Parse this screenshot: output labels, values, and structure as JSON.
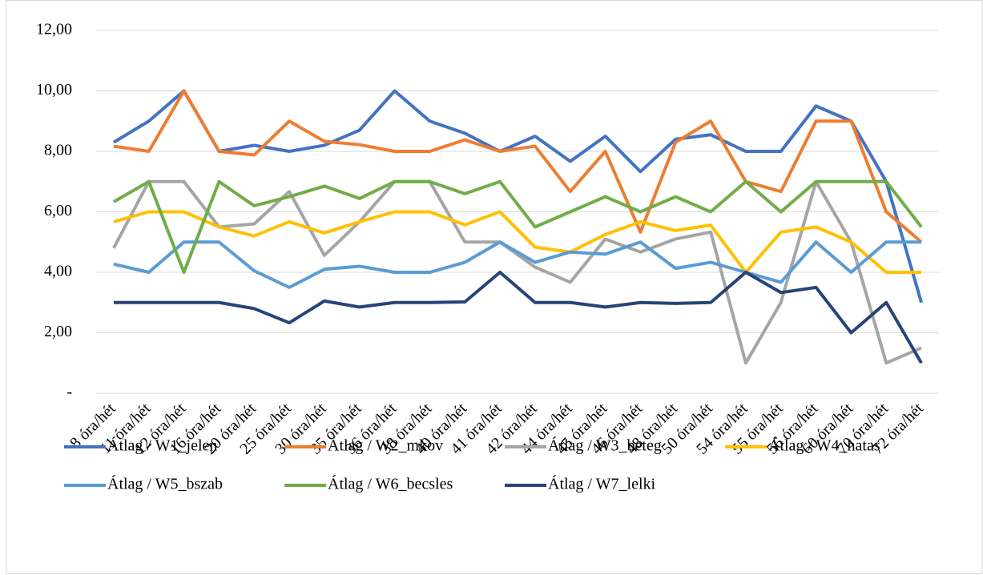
{
  "chart_data": {
    "type": "line",
    "categories": [
      "8 óra/hét",
      "11 óra/hét",
      "12 óra/hét",
      "16 óra/hét",
      "20 óra/hét",
      "25 óra/hét",
      "30 óra/hét",
      "35 óra/hét",
      "36 óra/hét",
      "38 óra/hét",
      "40 óra/hét",
      "41 óra/hét",
      "42 óra/hét",
      "44 óra/hét",
      "45 óra/hét",
      "46 óra/hét",
      "48 óra/hét",
      "50 óra/hét",
      "54 óra/hét",
      "55 óra/hét",
      "56 óra/hét",
      "60 óra/hét",
      "70 óra/hét",
      "72 óra/hét"
    ],
    "series": [
      {
        "name": "Átlag / W1_jelen",
        "color": "#4472c4",
        "values": [
          8.3,
          9.0,
          10.0,
          8.0,
          8.2,
          8.0,
          8.2,
          8.7,
          10.0,
          9.0,
          8.6,
          8.0,
          8.5,
          7.67,
          8.5,
          7.33,
          8.4,
          8.55,
          8.0,
          8.0,
          9.5,
          9.0,
          7.0,
          3.0
        ]
      },
      {
        "name": "Átlag / W2_mkov",
        "color": "#ed7d31",
        "values": [
          8.17,
          8.0,
          10.0,
          8.0,
          7.88,
          9.0,
          8.33,
          8.22,
          8.0,
          8.0,
          8.38,
          8.0,
          8.17,
          6.67,
          8.0,
          5.33,
          8.3,
          9.0,
          7.0,
          6.67,
          9.0,
          9.0,
          6.0,
          5.0
        ]
      },
      {
        "name": "Átlag / W3_beteg",
        "color": "#a5a5a5",
        "values": [
          4.8,
          7.0,
          7.0,
          5.5,
          5.6,
          6.67,
          4.56,
          5.67,
          7.0,
          7.0,
          5.0,
          5.0,
          4.17,
          3.67,
          5.1,
          4.67,
          5.1,
          5.33,
          1.0,
          3.0,
          7.0,
          5.0,
          1.0,
          1.5
        ]
      },
      {
        "name": "Átlag / W4_hatas",
        "color": "#ffc000",
        "values": [
          5.67,
          6.0,
          6.0,
          5.5,
          5.2,
          5.67,
          5.3,
          5.67,
          6.0,
          6.0,
          5.57,
          6.0,
          4.83,
          4.67,
          5.25,
          5.67,
          5.38,
          5.56,
          4.0,
          5.33,
          5.5,
          5.0,
          4.0,
          4.0
        ]
      },
      {
        "name": "Átlag / W5_bszab",
        "color": "#5b9bd5",
        "values": [
          4.27,
          4.0,
          5.0,
          5.0,
          4.05,
          3.5,
          4.1,
          4.2,
          4.0,
          4.0,
          4.33,
          5.0,
          4.33,
          4.67,
          4.6,
          5.0,
          4.13,
          4.33,
          4.0,
          3.67,
          5.0,
          4.0,
          5.0,
          5.0
        ]
      },
      {
        "name": "Átlag / W6_becsles",
        "color": "#70ad47",
        "values": [
          6.33,
          7.0,
          4.0,
          7.0,
          6.2,
          6.5,
          6.85,
          6.44,
          7.0,
          7.0,
          6.6,
          7.0,
          5.5,
          6.0,
          6.5,
          6.0,
          6.5,
          6.0,
          7.0,
          6.0,
          7.0,
          7.0,
          7.0,
          5.5
        ]
      },
      {
        "name": "Átlag / W7_lelki",
        "color": "#264478",
        "values": [
          3.0,
          3.0,
          3.0,
          3.0,
          2.8,
          2.33,
          3.05,
          2.85,
          3.0,
          3.0,
          3.02,
          4.0,
          3.0,
          3.0,
          2.85,
          3.0,
          2.97,
          3.0,
          4.0,
          3.33,
          3.5,
          2.0,
          3.0,
          1.0
        ]
      }
    ],
    "ylim": [
      0,
      12
    ],
    "yticks": [
      {
        "value": 0,
        "label": "-"
      },
      {
        "value": 2,
        "label": "2,00"
      },
      {
        "value": 4,
        "label": "4,00"
      },
      {
        "value": 6,
        "label": "6,00"
      },
      {
        "value": 8,
        "label": "8,00"
      },
      {
        "value": 10,
        "label": "10,00"
      },
      {
        "value": 12,
        "label": "12,00"
      }
    ],
    "grid": true,
    "legend": "bottom"
  }
}
